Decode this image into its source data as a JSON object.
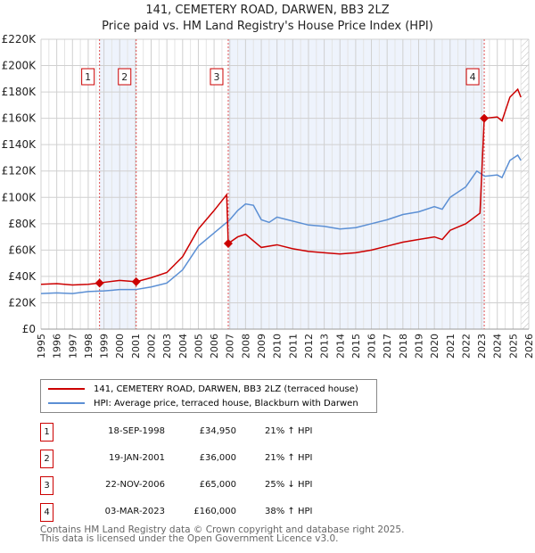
{
  "chart_data": {
    "type": "line",
    "title": "141, CEMETERY ROAD, DARWEN, BB3 2LZ",
    "subtitle": "Price paid vs. HM Land Registry's House Price Index (HPI)",
    "xlim": [
      1995,
      2026
    ],
    "ylim": [
      0,
      220000
    ],
    "y_ticks": [
      {
        "v": 0,
        "label": "£0"
      },
      {
        "v": 20000,
        "label": "£20K"
      },
      {
        "v": 40000,
        "label": "£40K"
      },
      {
        "v": 60000,
        "label": "£60K"
      },
      {
        "v": 80000,
        "label": "£80K"
      },
      {
        "v": 100000,
        "label": "£100K"
      },
      {
        "v": 120000,
        "label": "£120K"
      },
      {
        "v": 140000,
        "label": "£140K"
      },
      {
        "v": 160000,
        "label": "£160K"
      },
      {
        "v": 180000,
        "label": "£180K"
      },
      {
        "v": 200000,
        "label": "£200K"
      },
      {
        "v": 220000,
        "label": "£220K"
      }
    ],
    "x_ticks": [
      "1995",
      "1996",
      "1997",
      "1998",
      "1999",
      "2000",
      "2001",
      "2002",
      "2003",
      "2004",
      "2005",
      "2006",
      "2007",
      "2008",
      "2009",
      "2010",
      "2011",
      "2012",
      "2013",
      "2014",
      "2015",
      "2016",
      "2017",
      "2018",
      "2019",
      "2020",
      "2021",
      "2022",
      "2023",
      "2024",
      "2025",
      "2026"
    ],
    "grid": true,
    "forecast_hatch_from": 2025.5,
    "series": [
      {
        "name": "141, CEMETERY ROAD, DARWEN, BB3 2LZ (terraced house)",
        "color": "#cc0000",
        "x": [
          1995,
          1996,
          1997,
          1998,
          1998.72,
          1999,
          2000,
          2001.05,
          2002,
          2003,
          2004,
          2005,
          2006,
          2006.8,
          2006.9,
          2007.5,
          2008,
          2009,
          2010,
          2011,
          2012,
          2013,
          2014,
          2015,
          2016,
          2017,
          2018,
          2019,
          2020,
          2020.5,
          2021,
          2022,
          2022.9,
          2023.17,
          2024,
          2024.3,
          2024.8,
          2025.3,
          2025.5
        ],
        "y": [
          34000,
          34500,
          33500,
          34000,
          34950,
          35500,
          37000,
          36000,
          39000,
          43000,
          55000,
          76000,
          90000,
          102000,
          65000,
          70000,
          72000,
          62000,
          64000,
          61000,
          59000,
          58000,
          57000,
          58000,
          60000,
          63000,
          66000,
          68000,
          70000,
          68000,
          75000,
          80000,
          88000,
          160000,
          161000,
          158000,
          176000,
          182000,
          176000
        ]
      },
      {
        "name": "HPI: Average price, terraced house, Blackburn with Darwen",
        "color": "#5b8fd4",
        "x": [
          1995,
          1996,
          1997,
          1998,
          1999,
          2000,
          2001,
          2002,
          2003,
          2004,
          2005,
          2006,
          2007,
          2007.5,
          2008,
          2008.5,
          2009,
          2009.5,
          2010,
          2011,
          2012,
          2013,
          2014,
          2015,
          2016,
          2017,
          2018,
          2019,
          2020,
          2020.5,
          2021,
          2022,
          2022.7,
          2023.2,
          2024,
          2024.3,
          2024.8,
          2025.3,
          2025.5
        ],
        "y": [
          27000,
          27500,
          27000,
          28500,
          29000,
          30000,
          30000,
          32000,
          35000,
          45000,
          63000,
          73000,
          83000,
          90000,
          95000,
          94000,
          83000,
          81000,
          85000,
          82000,
          79000,
          78000,
          76000,
          77000,
          80000,
          83000,
          87000,
          89000,
          93000,
          91000,
          100000,
          108000,
          120000,
          116000,
          117000,
          115000,
          128000,
          132000,
          128000
        ]
      }
    ],
    "sales": [
      {
        "n": "1",
        "x": 1998.72,
        "y": 34950,
        "date": "18-SEP-1998",
        "price": "£34,950",
        "hpi": "21% ↑ HPI"
      },
      {
        "n": "2",
        "x": 2001.05,
        "y": 36000,
        "date": "19-JAN-2001",
        "price": "£36,000",
        "hpi": "21% ↑ HPI"
      },
      {
        "n": "3",
        "x": 2006.9,
        "y": 65000,
        "date": "22-NOV-2006",
        "price": "£65,000",
        "hpi": "25% ↓ HPI"
      },
      {
        "n": "4",
        "x": 2023.17,
        "y": 160000,
        "date": "03-MAR-2023",
        "price": "£160,000",
        "hpi": "38% ↑ HPI"
      }
    ]
  },
  "legend": {
    "red": "141, CEMETERY ROAD, DARWEN, BB3 2LZ (terraced house)",
    "blue": "HPI: Average price, terraced house, Blackburn with Darwen"
  },
  "footer": {
    "line1": "Contains HM Land Registry data © Crown copyright and database right 2025.",
    "line2": "This data is licensed under the Open Government Licence v3.0."
  }
}
